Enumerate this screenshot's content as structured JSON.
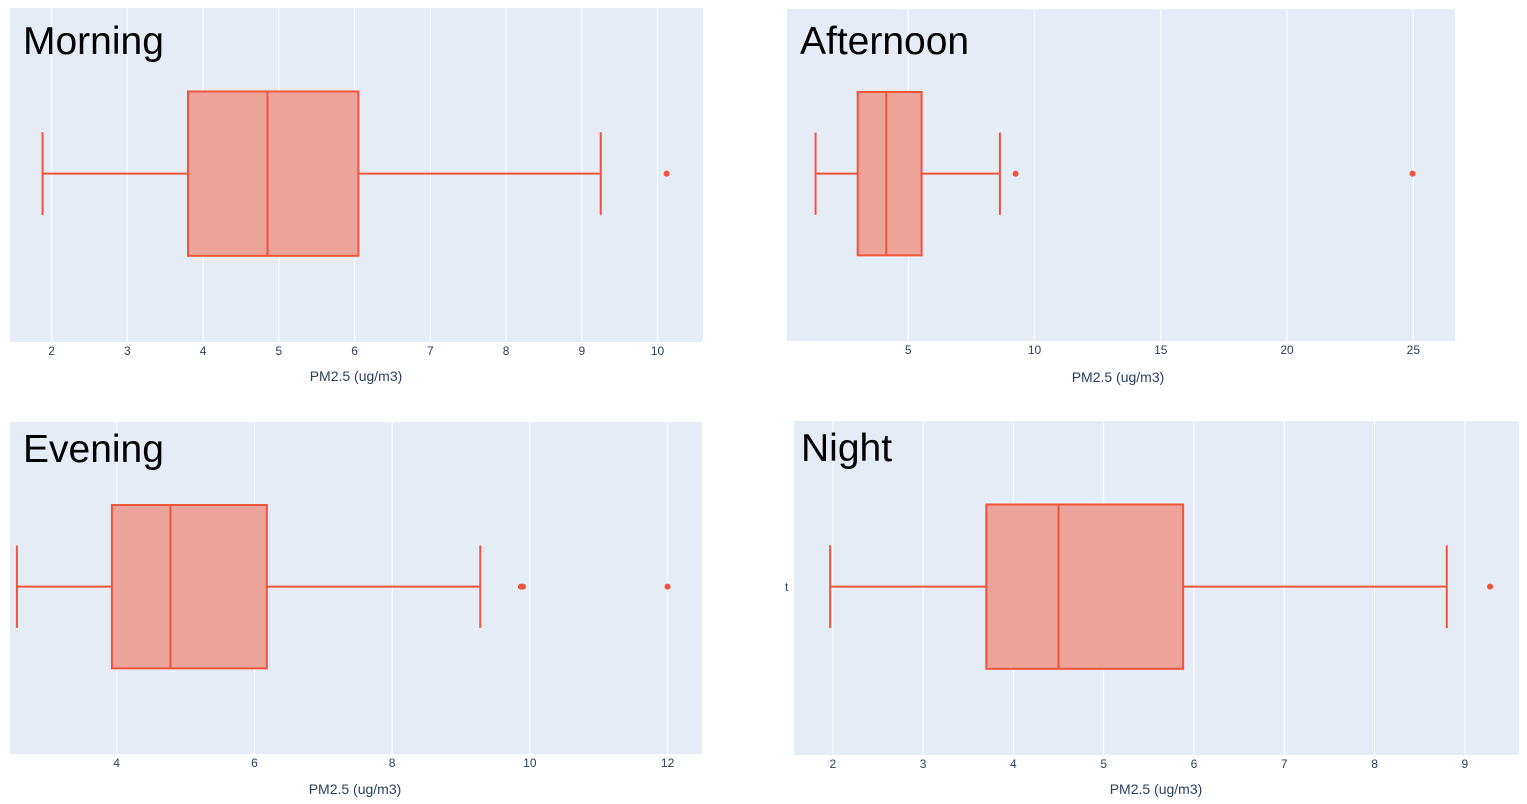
{
  "colors": {
    "plot_bg": "#e5ecf6",
    "grid": "#ffffff",
    "box_line": "#ef553b",
    "box_fill": "#eca39a",
    "tick_text": "#2a3f5f"
  },
  "stray_text": "t",
  "chart_data": [
    {
      "type": "box",
      "title": "Morning",
      "xlabel": "PM2.5 (ug/m3)",
      "xlim": [
        1.45,
        10.6
      ],
      "xticks": [
        2,
        3,
        4,
        5,
        6,
        7,
        8,
        9,
        10
      ],
      "grid": true,
      "box": {
        "lower_fence": 1.88,
        "q1": 3.8,
        "median": 4.85,
        "q3": 6.05,
        "upper_fence": 9.25
      },
      "outliers": [
        10.12
      ]
    },
    {
      "type": "box",
      "title": "Afternoon",
      "xlabel": "PM2.5 (ug/m3)",
      "xlim": [
        0.2,
        26.65
      ],
      "xticks": [
        5,
        10,
        15,
        20,
        25
      ],
      "grid": true,
      "box": {
        "lower_fence": 1.33,
        "q1": 3.0,
        "median": 4.13,
        "q3": 5.53,
        "upper_fence": 8.63
      },
      "outliers": [
        9.25,
        24.97
      ]
    },
    {
      "type": "box",
      "title": "Evening",
      "xlabel": "PM2.5 (ug/m3)",
      "xlim": [
        2.45,
        12.5
      ],
      "xticks": [
        4,
        6,
        8,
        10,
        12
      ],
      "grid": true,
      "box": {
        "lower_fence": 2.55,
        "q1": 3.93,
        "median": 4.78,
        "q3": 6.18,
        "upper_fence": 9.28
      },
      "outliers": [
        9.87,
        9.9,
        12.0
      ]
    },
    {
      "type": "box",
      "title": "Night",
      "xlabel": "PM2.5 (ug/m3)",
      "xlim": [
        1.57,
        9.6
      ],
      "xticks": [
        2,
        3,
        4,
        5,
        6,
        7,
        8,
        9
      ],
      "grid": true,
      "box": {
        "lower_fence": 1.97,
        "q1": 3.7,
        "median": 4.5,
        "q3": 5.88,
        "upper_fence": 8.8
      },
      "outliers": [
        9.28
      ]
    }
  ]
}
